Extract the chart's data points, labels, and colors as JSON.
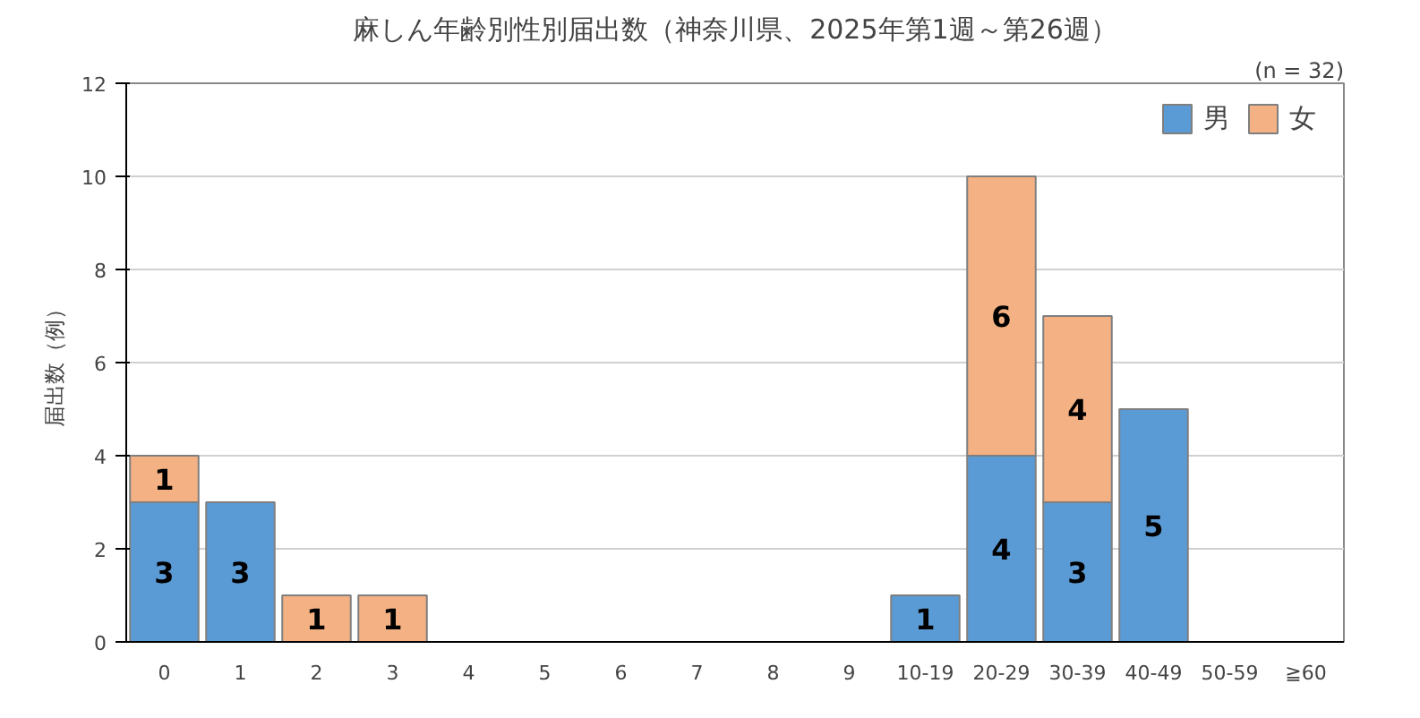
{
  "chart_data": {
    "type": "bar",
    "title": "麻しん年齢別性別届出数（神奈川県、2025年第1週～第26週）",
    "annotations": [
      "(n = 32)"
    ],
    "ylabel": "届出数（例）",
    "categories": [
      "0",
      "1",
      "2",
      "3",
      "4",
      "5",
      "6",
      "7",
      "8",
      "9",
      "10-19",
      "20-29",
      "30-39",
      "40-49",
      "50-59",
      "≧60"
    ],
    "stacked": true,
    "ylim": [
      0,
      12
    ],
    "yticks": [
      0,
      2,
      4,
      6,
      8,
      10,
      12
    ],
    "grid": "y",
    "legend": "top right",
    "series": [
      {
        "name": "男",
        "color": "#5b9bd5",
        "values": [
          3,
          3,
          0,
          0,
          0,
          0,
          0,
          0,
          0,
          0,
          1,
          4,
          3,
          5,
          0,
          0
        ],
        "value_labels": [
          "3",
          "3",
          null,
          null,
          null,
          null,
          null,
          null,
          null,
          null,
          "1",
          "4",
          "3",
          "5",
          null,
          null
        ]
      },
      {
        "name": "女",
        "color": "#f4b183",
        "values": [
          1,
          0,
          1,
          1,
          0,
          0,
          0,
          0,
          0,
          0,
          0,
          6,
          4,
          0,
          0,
          0
        ],
        "value_labels": [
          "1",
          null,
          "1",
          "1",
          null,
          null,
          null,
          null,
          null,
          null,
          null,
          "6",
          "4",
          null,
          null,
          null
        ]
      }
    ]
  }
}
